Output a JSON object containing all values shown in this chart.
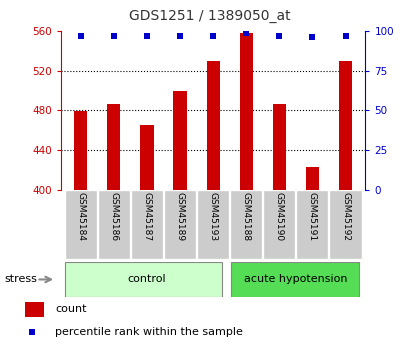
{
  "title": "GDS1251 / 1389050_at",
  "samples": [
    "GSM45184",
    "GSM45186",
    "GSM45187",
    "GSM45189",
    "GSM45193",
    "GSM45188",
    "GSM45190",
    "GSM45191",
    "GSM45192"
  ],
  "counts": [
    479,
    486,
    465,
    500,
    530,
    558,
    486,
    423,
    530
  ],
  "percentiles": [
    97,
    97,
    97,
    97,
    97,
    99,
    97,
    96,
    97
  ],
  "ylim_left": [
    400,
    560
  ],
  "ylim_right": [
    0,
    100
  ],
  "yticks_left": [
    400,
    440,
    480,
    520,
    560
  ],
  "yticks_right": [
    0,
    25,
    50,
    75,
    100
  ],
  "bar_color": "#cc0000",
  "dot_color": "#0000cc",
  "control_color": "#ccffcc",
  "hypo_color": "#55dd55",
  "bar_bg_color": "#cccccc",
  "title_color": "#333333",
  "left_axis_color": "#cc0000",
  "right_axis_color": "#0000cc",
  "figsize": [
    4.2,
    3.45
  ],
  "dpi": 100,
  "n_control": 5,
  "n_hypo": 4
}
